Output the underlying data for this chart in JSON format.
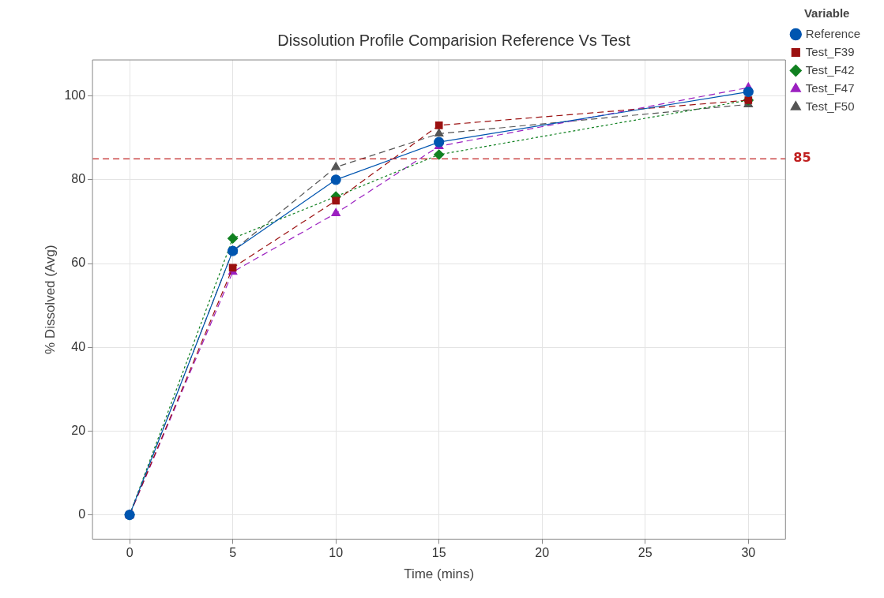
{
  "chart_data": {
    "type": "line",
    "title": "Dissolution Profile Comparision Reference Vs Test",
    "xlabel": "Time (mins)",
    "ylabel": "% Dissolved (Avg)",
    "legend_title": "Variable",
    "x": [
      0,
      5,
      10,
      15,
      30
    ],
    "series": [
      {
        "name": "Reference",
        "color": "#0055b0",
        "values": [
          0,
          63,
          80,
          89,
          101
        ],
        "marker": "circle",
        "line_style": "solid"
      },
      {
        "name": "Test_F39",
        "color": "#9b1010",
        "values": [
          0,
          59,
          75,
          93,
          99
        ],
        "marker": "square",
        "line_style": "dashed"
      },
      {
        "name": "Test_F42",
        "color": "#108020",
        "values": [
          0,
          66,
          76,
          86,
          99
        ],
        "marker": "diamond",
        "line_style": "dotted"
      },
      {
        "name": "Test_F47",
        "color": "#9b20c0",
        "values": [
          0,
          58,
          72,
          88,
          102
        ],
        "marker": "triangle",
        "line_style": "dashed"
      },
      {
        "name": "Test_F50",
        "color": "#555555",
        "values": [
          0,
          63,
          83,
          91,
          98
        ],
        "marker": "triangle",
        "line_style": "dashed"
      }
    ],
    "xlim": [
      -1.8,
      31.8
    ],
    "xticks": [
      0,
      5,
      10,
      15,
      20,
      25,
      30
    ],
    "ylim": [
      -5.8,
      108.6
    ],
    "yticks": [
      0,
      20,
      40,
      60,
      80,
      100
    ],
    "ref_lines": [
      {
        "axis": "y",
        "value": 85,
        "label": "85",
        "color": "#c02020",
        "line_style": "dashed"
      }
    ],
    "grid": true,
    "legend": "top right"
  }
}
